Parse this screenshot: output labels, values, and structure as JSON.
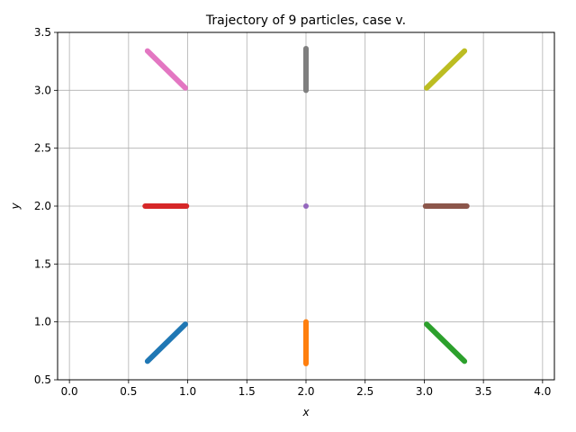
{
  "chart_data": {
    "type": "line",
    "title": "Trajectory of 9 particles, case v.",
    "xlabel": "x",
    "ylabel": "y",
    "xlim": [
      -0.1,
      4.1
    ],
    "ylim": [
      0.5,
      3.5
    ],
    "xticks": [
      0.0,
      0.5,
      1.0,
      1.5,
      2.0,
      2.5,
      3.0,
      3.5,
      4.0
    ],
    "xtick_labels": [
      "0.0",
      "0.5",
      "1.0",
      "1.5",
      "2.0",
      "2.5",
      "3.0",
      "3.5",
      "4.0"
    ],
    "yticks": [
      0.5,
      1.0,
      1.5,
      2.0,
      2.5,
      3.0,
      3.5
    ],
    "ytick_labels": [
      "0.5",
      "1.0",
      "1.5",
      "2.0",
      "2.5",
      "3.0",
      "3.5"
    ],
    "grid": true,
    "series": [
      {
        "color": "#1f77b4",
        "x": [
          0.98,
          0.66
        ],
        "y": [
          0.98,
          0.66
        ]
      },
      {
        "color": "#ff7f0e",
        "x": [
          2.0,
          2.0
        ],
        "y": [
          1.0,
          0.64
        ]
      },
      {
        "color": "#2ca02c",
        "x": [
          3.02,
          3.34
        ],
        "y": [
          0.98,
          0.66
        ]
      },
      {
        "color": "#d62728",
        "x": [
          0.99,
          0.64
        ],
        "y": [
          2.0,
          2.0
        ]
      },
      {
        "color": "#9467bd",
        "x": [
          2.0,
          2.0
        ],
        "y": [
          2.0,
          2.0
        ]
      },
      {
        "color": "#8c564b",
        "x": [
          3.01,
          3.36
        ],
        "y": [
          2.0,
          2.0
        ]
      },
      {
        "color": "#e377c2",
        "x": [
          0.98,
          0.66
        ],
        "y": [
          3.02,
          3.34
        ]
      },
      {
        "color": "#7f7f7f",
        "x": [
          2.0,
          2.0
        ],
        "y": [
          3.0,
          3.36
        ]
      },
      {
        "color": "#bcbd22",
        "x": [
          3.02,
          3.34
        ],
        "y": [
          3.02,
          3.34
        ]
      }
    ]
  }
}
